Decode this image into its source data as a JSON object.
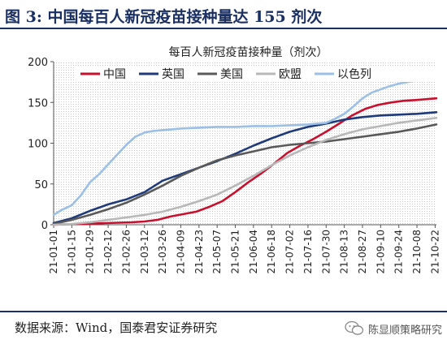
{
  "header": {
    "title": "图 3:  中国每百人新冠疫苗接种量达 155 剂次"
  },
  "footer": {
    "source": "数据来源：Wind，国泰君安证券研究",
    "watermark": "陈显顺策略研究"
  },
  "colors": {
    "中国": "#c8102e",
    "英国": "#1f3a7a",
    "美国": "#595959",
    "欧盟": "#b8b8b8",
    "以色列": "#9cbfe6",
    "frame": "#1a2f63"
  },
  "chart_data": {
    "type": "line",
    "title": "每百人新冠疫苗接种量（剂次）",
    "xlabel": "",
    "ylabel": "",
    "ylim": [
      0,
      200
    ],
    "yticks": [
      0,
      50,
      100,
      150,
      200
    ],
    "xlim": [
      0,
      295
    ],
    "x_tick_labels": [
      "21-01-01",
      "21-01-15",
      "21-01-29",
      "21-02-12",
      "21-02-26",
      "21-03-12",
      "21-03-26",
      "21-04-09",
      "21-04-23",
      "21-05-07",
      "21-05-21",
      "21-06-04",
      "21-06-18",
      "21-07-02",
      "21-07-16",
      "21-07-30",
      "21-08-13",
      "21-08-27",
      "21-09-10",
      "21-09-24",
      "21-10-08",
      "21-10-22"
    ],
    "x_tick_positions": [
      0,
      14,
      28,
      42,
      56,
      70,
      84,
      98,
      112,
      126,
      140,
      154,
      168,
      182,
      196,
      210,
      224,
      238,
      252,
      266,
      280,
      294
    ],
    "grid": "none",
    "background": "dotted",
    "legend_position": "top",
    "series": [
      {
        "name": "中国",
        "color": "#c8102e",
        "points": [
          [
            0,
            0
          ],
          [
            20,
            1
          ],
          [
            40,
            2
          ],
          [
            60,
            3
          ],
          [
            70,
            4
          ],
          [
            80,
            6
          ],
          [
            90,
            10
          ],
          [
            100,
            13
          ],
          [
            110,
            16
          ],
          [
            120,
            22
          ],
          [
            130,
            29
          ],
          [
            140,
            40
          ],
          [
            150,
            52
          ],
          [
            160,
            63
          ],
          [
            170,
            75
          ],
          [
            180,
            88
          ],
          [
            190,
            97
          ],
          [
            200,
            105
          ],
          [
            210,
            114
          ],
          [
            220,
            124
          ],
          [
            230,
            134
          ],
          [
            240,
            142
          ],
          [
            250,
            147
          ],
          [
            260,
            150
          ],
          [
            270,
            152
          ],
          [
            280,
            153
          ],
          [
            295,
            155
          ]
        ]
      },
      {
        "name": "英国",
        "color": "#1f3a7a",
        "points": [
          [
            0,
            2
          ],
          [
            14,
            8
          ],
          [
            28,
            17
          ],
          [
            42,
            25
          ],
          [
            56,
            31
          ],
          [
            70,
            40
          ],
          [
            84,
            54
          ],
          [
            98,
            62
          ],
          [
            112,
            70
          ],
          [
            126,
            78
          ],
          [
            140,
            87
          ],
          [
            154,
            97
          ],
          [
            168,
            106
          ],
          [
            182,
            114
          ],
          [
            196,
            120
          ],
          [
            210,
            124
          ],
          [
            224,
            129
          ],
          [
            238,
            132
          ],
          [
            252,
            134
          ],
          [
            266,
            135
          ],
          [
            280,
            136
          ],
          [
            295,
            138
          ]
        ]
      },
      {
        "name": "美国",
        "color": "#595959",
        "points": [
          [
            0,
            1
          ],
          [
            14,
            6
          ],
          [
            28,
            12
          ],
          [
            42,
            19
          ],
          [
            56,
            27
          ],
          [
            70,
            37
          ],
          [
            84,
            48
          ],
          [
            98,
            60
          ],
          [
            112,
            70
          ],
          [
            126,
            79
          ],
          [
            140,
            85
          ],
          [
            154,
            90
          ],
          [
            168,
            95
          ],
          [
            182,
            98
          ],
          [
            196,
            100
          ],
          [
            210,
            102
          ],
          [
            224,
            105
          ],
          [
            238,
            108
          ],
          [
            252,
            111
          ],
          [
            266,
            114
          ],
          [
            280,
            118
          ],
          [
            295,
            123
          ]
        ]
      },
      {
        "name": "欧盟",
        "color": "#b8b8b8",
        "points": [
          [
            0,
            0
          ],
          [
            14,
            1
          ],
          [
            28,
            3
          ],
          [
            42,
            6
          ],
          [
            56,
            9
          ],
          [
            70,
            12
          ],
          [
            84,
            16
          ],
          [
            98,
            22
          ],
          [
            112,
            29
          ],
          [
            126,
            37
          ],
          [
            140,
            48
          ],
          [
            154,
            60
          ],
          [
            168,
            73
          ],
          [
            182,
            85
          ],
          [
            196,
            95
          ],
          [
            210,
            104
          ],
          [
            224,
            111
          ],
          [
            238,
            117
          ],
          [
            252,
            121
          ],
          [
            266,
            125
          ],
          [
            280,
            128
          ],
          [
            295,
            131
          ]
        ]
      },
      {
        "name": "以色列",
        "color": "#9cbfe6",
        "points": [
          [
            0,
            12
          ],
          [
            6,
            18
          ],
          [
            14,
            24
          ],
          [
            21,
            36
          ],
          [
            28,
            52
          ],
          [
            35,
            62
          ],
          [
            42,
            74
          ],
          [
            49,
            86
          ],
          [
            56,
            98
          ],
          [
            63,
            108
          ],
          [
            70,
            113
          ],
          [
            77,
            115
          ],
          [
            84,
            116
          ],
          [
            98,
            118
          ],
          [
            112,
            119
          ],
          [
            126,
            120
          ],
          [
            140,
            120
          ],
          [
            154,
            121
          ],
          [
            168,
            121
          ],
          [
            182,
            122
          ],
          [
            196,
            123
          ],
          [
            210,
            125
          ],
          [
            217,
            130
          ],
          [
            224,
            136
          ],
          [
            231,
            145
          ],
          [
            238,
            155
          ],
          [
            245,
            162
          ],
          [
            252,
            166
          ],
          [
            259,
            170
          ],
          [
            266,
            173
          ],
          [
            273,
            175
          ],
          [
            280,
            177
          ],
          [
            287,
            179
          ],
          [
            295,
            180
          ]
        ]
      }
    ]
  }
}
